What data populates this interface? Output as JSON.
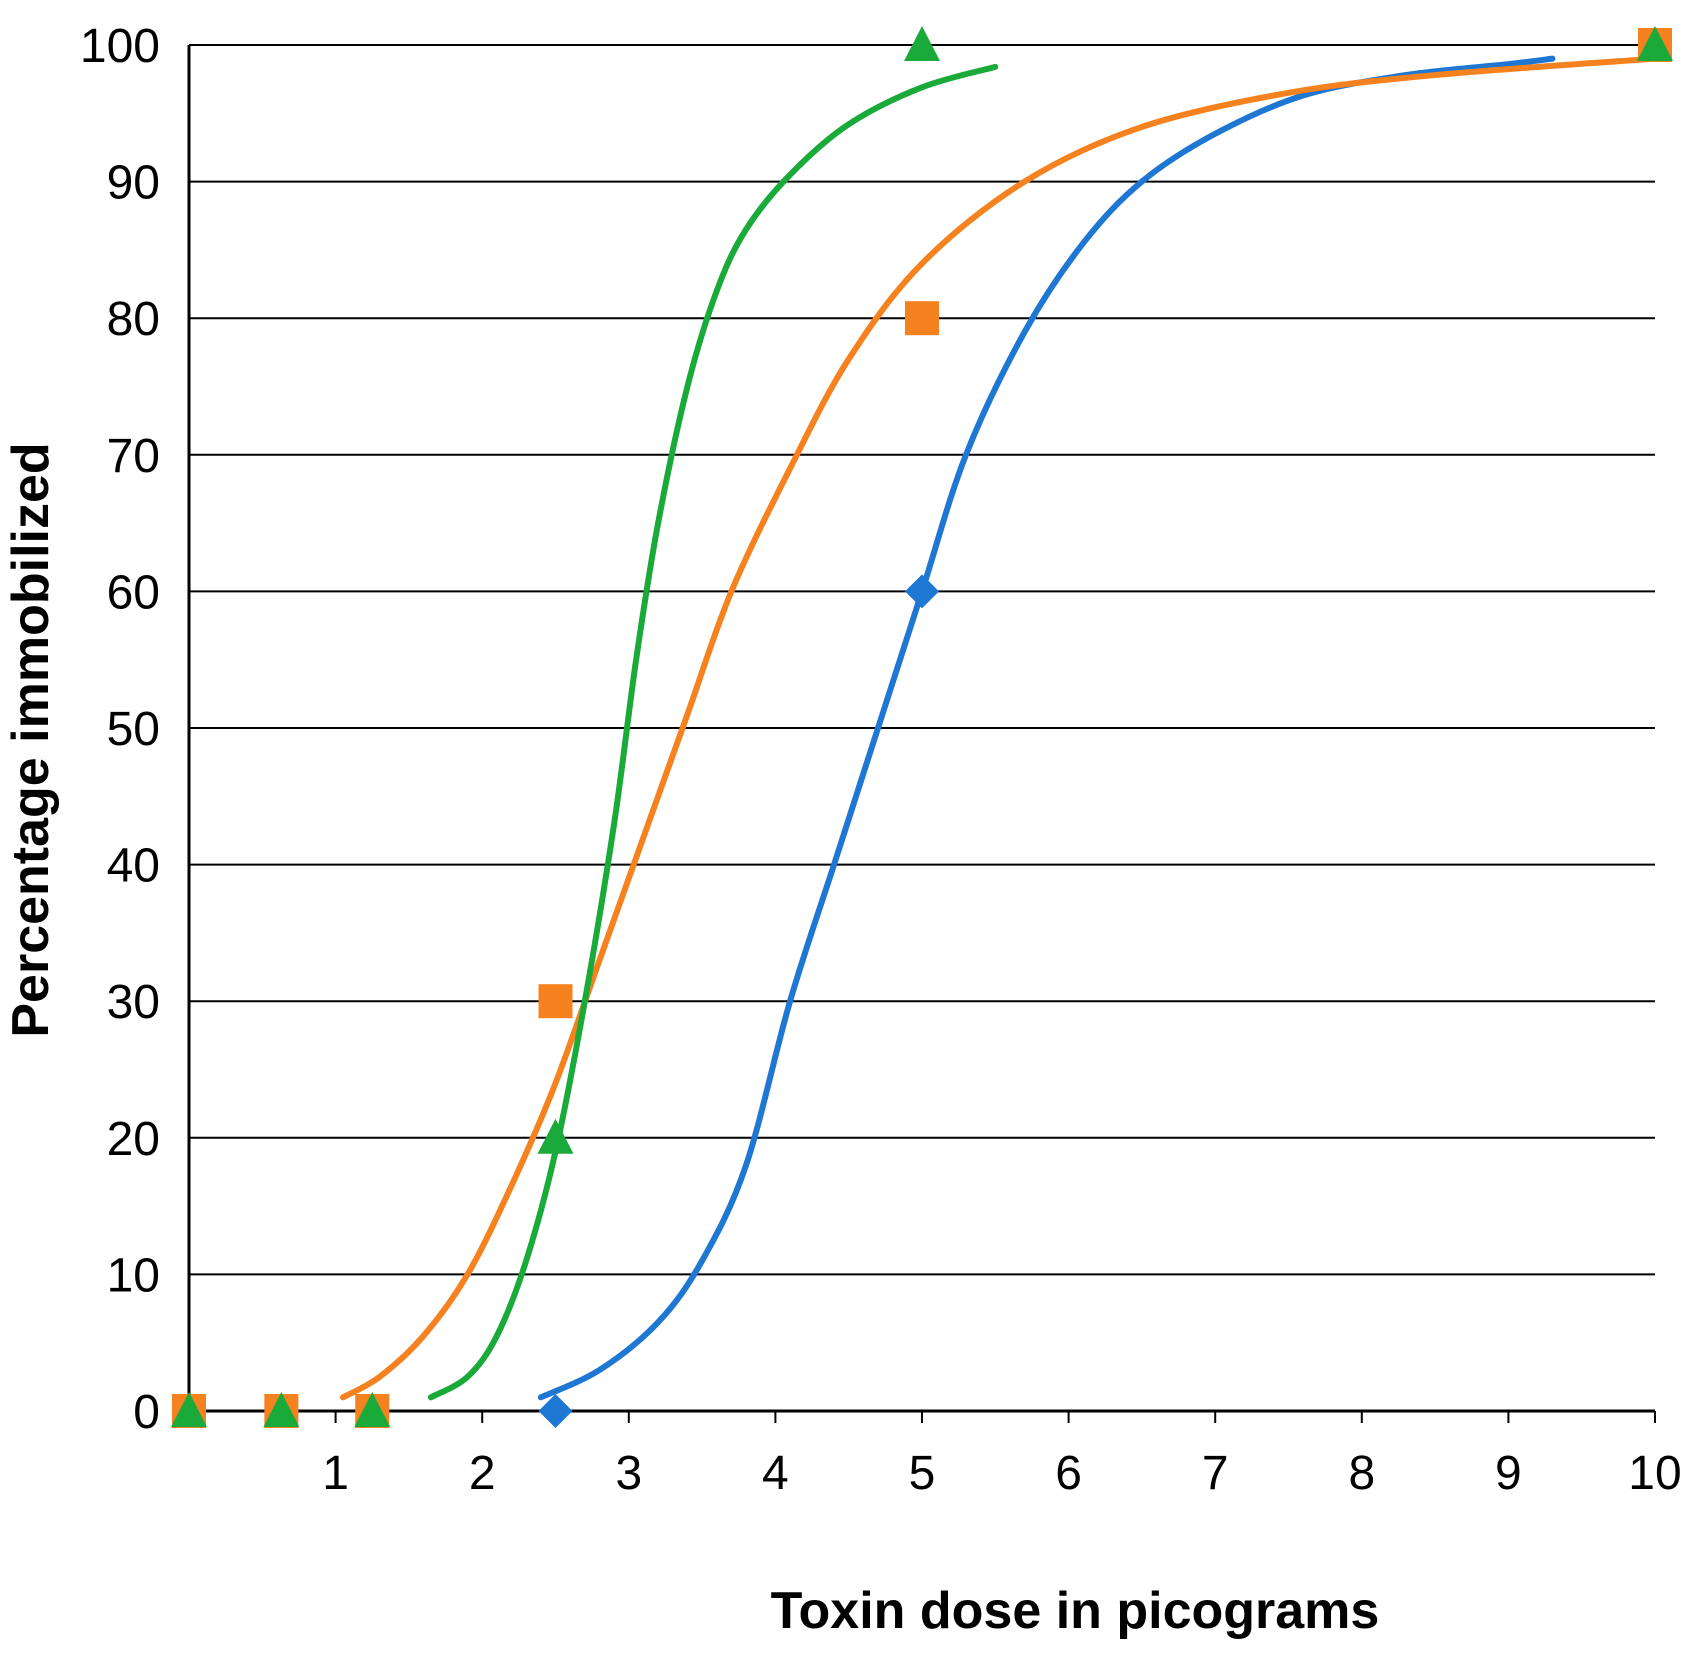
{
  "chart_data": {
    "type": "scatter",
    "title": "",
    "xlabel": "Toxin dose in picograms",
    "ylabel": "Percentage immobilized",
    "xlim": [
      0,
      10
    ],
    "ylim": [
      0,
      100
    ],
    "x_ticks": [
      1,
      2,
      3,
      4,
      5,
      6,
      7,
      8,
      9,
      10
    ],
    "y_ticks": [
      0,
      10,
      20,
      30,
      40,
      50,
      60,
      70,
      80,
      90,
      100
    ],
    "grid": "horizontal",
    "legend": "none",
    "series": [
      {
        "marker": "diamond",
        "color": "#1f77d4",
        "points": [
          [
            2.5,
            0
          ],
          [
            5,
            60
          ],
          [
            10,
            100
          ]
        ],
        "fit_curve": [
          [
            2.4,
            1
          ],
          [
            2.8,
            3
          ],
          [
            3.2,
            6.5
          ],
          [
            3.5,
            11
          ],
          [
            3.8,
            18
          ],
          [
            4.1,
            30
          ],
          [
            4.4,
            40
          ],
          [
            4.7,
            50
          ],
          [
            5.0,
            60
          ],
          [
            5.3,
            70
          ],
          [
            5.7,
            79
          ],
          [
            6.1,
            85.5
          ],
          [
            6.5,
            90
          ],
          [
            7.0,
            93.5
          ],
          [
            7.6,
            96.3
          ],
          [
            8.3,
            97.8
          ],
          [
            9.0,
            98.6
          ],
          [
            9.3,
            99
          ]
        ]
      },
      {
        "marker": "square",
        "color": "#f5821f",
        "points": [
          [
            0,
            0
          ],
          [
            0.63,
            0
          ],
          [
            1.25,
            0
          ],
          [
            2.5,
            30
          ],
          [
            5,
            80
          ],
          [
            10,
            100
          ]
        ],
        "fit_curve": [
          [
            1.05,
            1
          ],
          [
            1.3,
            2.5
          ],
          [
            1.6,
            5.5
          ],
          [
            1.9,
            10
          ],
          [
            2.2,
            16.5
          ],
          [
            2.5,
            24
          ],
          [
            2.8,
            33
          ],
          [
            3.1,
            42
          ],
          [
            3.4,
            51
          ],
          [
            3.7,
            60
          ],
          [
            4.1,
            69
          ],
          [
            4.5,
            77
          ],
          [
            5.0,
            84
          ],
          [
            5.7,
            90
          ],
          [
            6.5,
            94
          ],
          [
            7.5,
            96.5
          ],
          [
            8.5,
            97.8
          ],
          [
            10,
            99
          ]
        ]
      },
      {
        "marker": "triangle",
        "color": "#1aaa3a",
        "points": [
          [
            0,
            0
          ],
          [
            0.63,
            0
          ],
          [
            1.25,
            0
          ],
          [
            2.5,
            20
          ],
          [
            5,
            100
          ],
          [
            10,
            100
          ]
        ],
        "fit_curve": [
          [
            1.65,
            1
          ],
          [
            1.9,
            2.5
          ],
          [
            2.1,
            5.5
          ],
          [
            2.3,
            11
          ],
          [
            2.5,
            19
          ],
          [
            2.7,
            30
          ],
          [
            2.9,
            43
          ],
          [
            3.05,
            55
          ],
          [
            3.2,
            65
          ],
          [
            3.4,
            75
          ],
          [
            3.6,
            82
          ],
          [
            3.8,
            86.5
          ],
          [
            4.1,
            90.5
          ],
          [
            4.5,
            94.2
          ],
          [
            5.0,
            96.9
          ],
          [
            5.5,
            98.4
          ]
        ]
      }
    ]
  }
}
